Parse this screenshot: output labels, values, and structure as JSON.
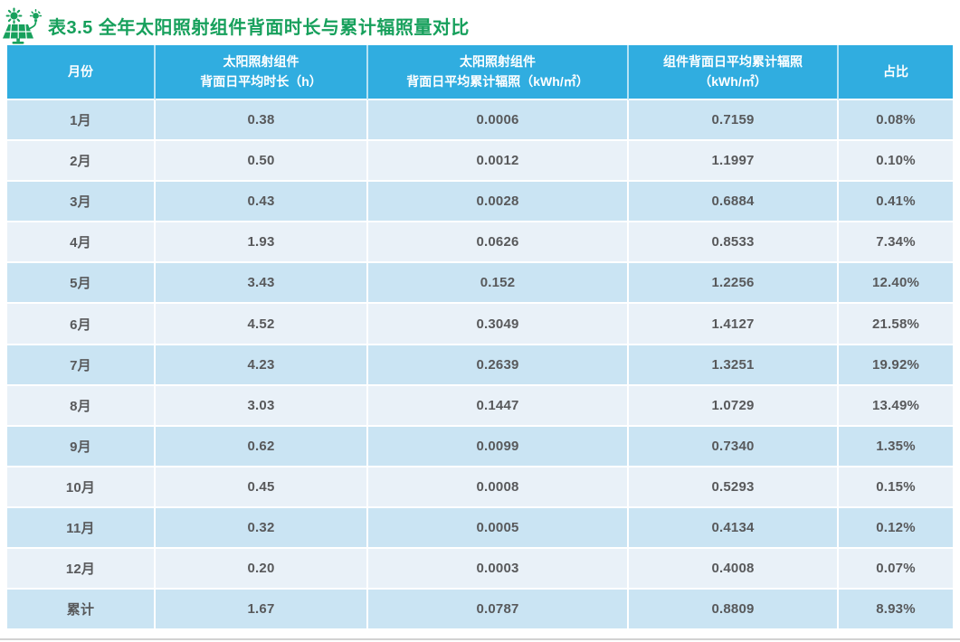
{
  "page": {
    "title": "表3.5 全年太阳照射组件背面时长与累计辐照量对比"
  },
  "theme": {
    "title_green": "#17A05C",
    "header_bg": "#30ADE0",
    "row_odd": "#CAE4F3",
    "row_even": "#E9F1F8",
    "cell_text": "#58595B",
    "header_text": "#FFFFFF",
    "divider_gray": "#D2D2D2"
  },
  "icons": {
    "title_icon": "solar-panel-sun-bulb-icon"
  },
  "chart_data": {
    "type": "table",
    "title": "表3.5 全年太阳照射组件背面时长与累计辐照量对比",
    "columns": [
      "月份",
      "太阳照射组件\n背面日平均时长（h）",
      "太阳照射组件\n背面日平均累计辐照（kWh/㎡）",
      "组件背面日平均累计辐照\n（kWh/㎡）",
      "占比"
    ],
    "rows": [
      [
        "1月",
        "0.38",
        "0.0006",
        "0.7159",
        "0.08%"
      ],
      [
        "2月",
        "0.50",
        "0.0012",
        "1.1997",
        "0.10%"
      ],
      [
        "3月",
        "0.43",
        "0.0028",
        "0.6884",
        "0.41%"
      ],
      [
        "4月",
        "1.93",
        "0.0626",
        "0.8533",
        "7.34%"
      ],
      [
        "5月",
        "3.43",
        "0.152",
        "1.2256",
        "12.40%"
      ],
      [
        "6月",
        "4.52",
        "0.3049",
        "1.4127",
        "21.58%"
      ],
      [
        "7月",
        "4.23",
        "0.2639",
        "1.3251",
        "19.92%"
      ],
      [
        "8月",
        "3.03",
        "0.1447",
        "1.0729",
        "13.49%"
      ],
      [
        "9月",
        "0.62",
        "0.0099",
        "0.7340",
        "1.35%"
      ],
      [
        "10月",
        "0.45",
        "0.0008",
        "0.5293",
        "0.15%"
      ],
      [
        "11月",
        "0.32",
        "0.0005",
        "0.4134",
        "0.12%"
      ],
      [
        "12月",
        "0.20",
        "0.0003",
        "0.4008",
        "0.07%"
      ],
      [
        "累计",
        "1.67",
        "0.0787",
        "0.8809",
        "8.93%"
      ]
    ]
  }
}
